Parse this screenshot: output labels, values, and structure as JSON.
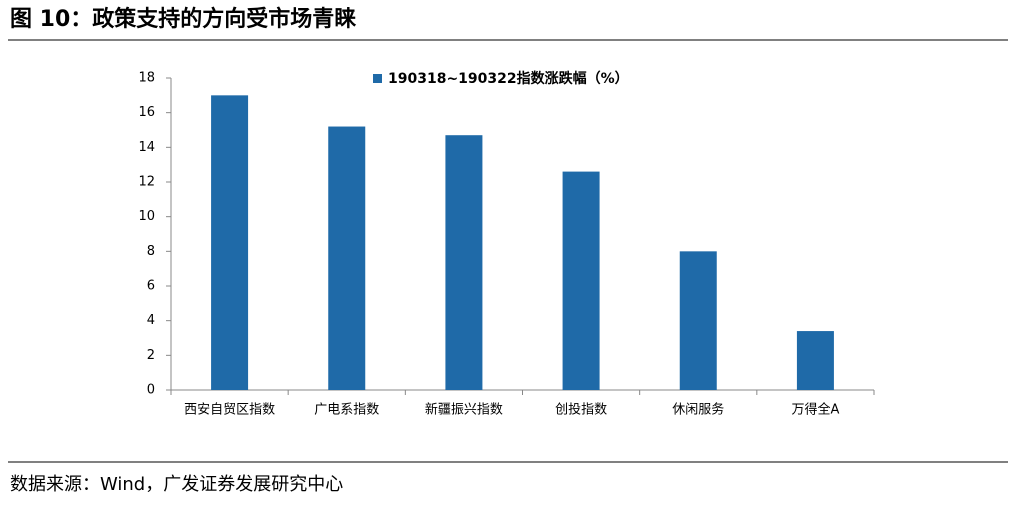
{
  "header": {
    "title": "图 10：政策支持的方向受市场青睐"
  },
  "chart_data": {
    "type": "bar",
    "categories": [
      "西安自贸区指数",
      "广电系指数",
      "新疆振兴指数",
      "创投指数",
      "休闲服务",
      "万得全A"
    ],
    "series": [
      {
        "name": "190318~190322指数涨跌幅（%）",
        "color": "#1f6aa8",
        "values": [
          17.0,
          15.2,
          14.7,
          12.6,
          8.0,
          3.4
        ]
      }
    ],
    "ylim": [
      0,
      18
    ],
    "yticks": [
      0,
      2,
      4,
      6,
      8,
      10,
      12,
      14,
      16,
      18
    ],
    "legend": "top"
  },
  "footer": {
    "source": "数据来源：Wind，广发证券发展研究中心"
  }
}
